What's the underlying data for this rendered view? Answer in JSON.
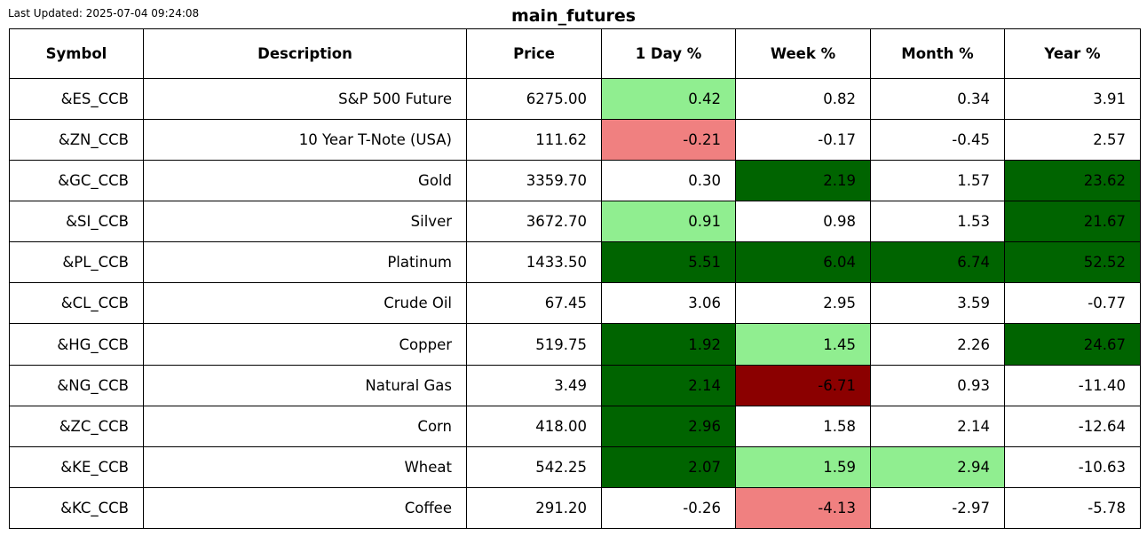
{
  "last_updated": "Last Updated: 2025-07-04 09:24:08",
  "chart_data": {
    "type": "table",
    "title": "main_futures",
    "columns": [
      "Symbol",
      "Description",
      "Price",
      "1 Day %",
      "Week %",
      "Month %",
      "Year %"
    ],
    "rows": [
      {
        "symbol": "&ES_CCB",
        "description": "S&P 500 Future",
        "price": "6275.00",
        "day": "0.42",
        "week": "0.82",
        "month": "0.34",
        "year": "3.91"
      },
      {
        "symbol": "&ZN_CCB",
        "description": "10 Year T-Note (USA)",
        "price": "111.62",
        "day": "-0.21",
        "week": "-0.17",
        "month": "-0.45",
        "year": "2.57"
      },
      {
        "symbol": "&GC_CCB",
        "description": "Gold",
        "price": "3359.70",
        "day": "0.30",
        "week": "2.19",
        "month": "1.57",
        "year": "23.62"
      },
      {
        "symbol": "&SI_CCB",
        "description": "Silver",
        "price": "3672.70",
        "day": "0.91",
        "week": "0.98",
        "month": "1.53",
        "year": "21.67"
      },
      {
        "symbol": "&PL_CCB",
        "description": "Platinum",
        "price": "1433.50",
        "day": "5.51",
        "week": "6.04",
        "month": "6.74",
        "year": "52.52"
      },
      {
        "symbol": "&CL_CCB",
        "description": "Crude Oil",
        "price": "67.45",
        "day": "3.06",
        "week": "2.95",
        "month": "3.59",
        "year": "-0.77"
      },
      {
        "symbol": "&HG_CCB",
        "description": "Copper",
        "price": "519.75",
        "day": "1.92",
        "week": "1.45",
        "month": "2.26",
        "year": "24.67"
      },
      {
        "symbol": "&NG_CCB",
        "description": "Natural Gas",
        "price": "3.49",
        "day": "2.14",
        "week": "-6.71",
        "month": "0.93",
        "year": "-11.40"
      },
      {
        "symbol": "&ZC_CCB",
        "description": "Corn",
        "price": "418.00",
        "day": "2.96",
        "week": "1.58",
        "month": "2.14",
        "year": "-12.64"
      },
      {
        "symbol": "&KE_CCB",
        "description": "Wheat",
        "price": "542.25",
        "day": "2.07",
        "week": "1.59",
        "month": "2.94",
        "year": "-10.63"
      },
      {
        "symbol": "&KC_CCB",
        "description": "Coffee",
        "price": "291.20",
        "day": "-0.26",
        "week": "-4.13",
        "month": "-2.97",
        "year": "-5.78"
      }
    ],
    "cell_colors": {
      "light_green": "#90ee90",
      "dark_green": "#006400",
      "light_red": "#f08080",
      "dark_red": "#8b0000",
      "none": "#ffffff"
    },
    "cell_fills": [
      [
        "none",
        "none",
        "none",
        "light_green",
        "none",
        "none",
        "none"
      ],
      [
        "none",
        "none",
        "none",
        "light_red",
        "none",
        "none",
        "none"
      ],
      [
        "none",
        "none",
        "none",
        "none",
        "dark_green",
        "none",
        "dark_green"
      ],
      [
        "none",
        "none",
        "none",
        "light_green",
        "none",
        "none",
        "dark_green"
      ],
      [
        "none",
        "none",
        "none",
        "dark_green",
        "dark_green",
        "dark_green",
        "dark_green"
      ],
      [
        "none",
        "none",
        "none",
        "none",
        "none",
        "none",
        "none"
      ],
      [
        "none",
        "none",
        "none",
        "dark_green",
        "light_green",
        "none",
        "dark_green"
      ],
      [
        "none",
        "none",
        "none",
        "dark_green",
        "dark_red",
        "none",
        "none"
      ],
      [
        "none",
        "none",
        "none",
        "dark_green",
        "none",
        "none",
        "none"
      ],
      [
        "none",
        "none",
        "none",
        "dark_green",
        "light_green",
        "light_green",
        "none"
      ],
      [
        "none",
        "none",
        "none",
        "none",
        "light_red",
        "none",
        "none"
      ]
    ]
  }
}
